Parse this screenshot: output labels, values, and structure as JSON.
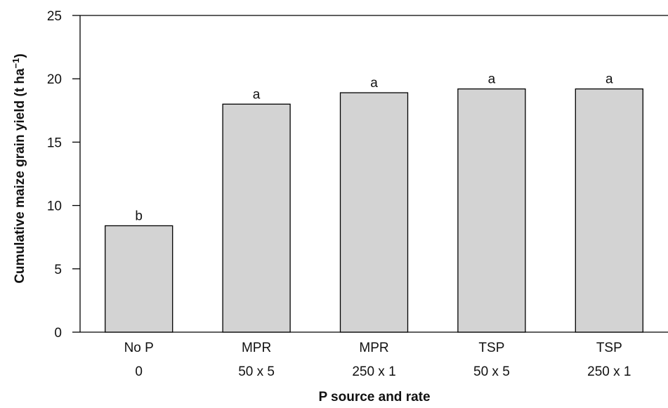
{
  "chart_data": {
    "type": "bar",
    "categories": [
      [
        "No P",
        "0"
      ],
      [
        "MPR",
        "50 x 5"
      ],
      [
        "MPR",
        "250 x 1"
      ],
      [
        "TSP",
        "50 x 5"
      ],
      [
        "TSP",
        "250 x 1"
      ]
    ],
    "values": [
      8.4,
      18.0,
      18.9,
      19.2,
      19.2
    ],
    "significance_labels": [
      "b",
      "a",
      "a",
      "a",
      "a"
    ],
    "xlabel": "P source and rate",
    "ylabel": "Cumulative maize grain yield (t ha",
    "ylabel_sup": "−1",
    "ylabel_close": ")",
    "ylim": [
      0,
      25
    ],
    "yticks": [
      "0",
      "5",
      "10",
      "15",
      "20",
      "25"
    ],
    "grid": false,
    "bar_color": "#d3d3d3",
    "bar_stroke": "#000000"
  }
}
